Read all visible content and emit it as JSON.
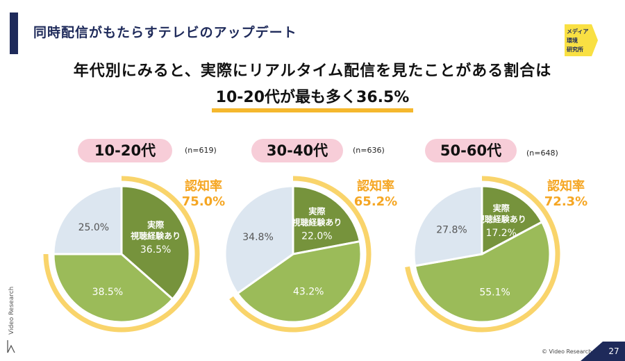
{
  "header": {
    "section_title": "同時配信がもたらすテレビのアップデート",
    "logo_lines": [
      "メディア",
      "環境",
      "研究所"
    ]
  },
  "headline": {
    "line1": "年代別にみると、実際にリアルタイム配信を見たことがある割合は",
    "line2": "10‐20代が最も多く36.5%"
  },
  "colors": {
    "navy": "#1e2a5a",
    "dark_green": "#76933c",
    "light_green": "#9bbb59",
    "pale_blue": "#dce6f0",
    "ring_yellow": "#f9d46b",
    "awareness_orange": "#f5a623",
    "pill_pink": "#f7cdd8"
  },
  "chart_data": [
    {
      "type": "pie",
      "title": "10-20代",
      "n": "(n=619)",
      "awareness_label": "認知率",
      "awareness_value": "75.0%",
      "awareness": 75.0,
      "inner_label": [
        "実際",
        "視聴経験あり"
      ],
      "slices": [
        {
          "label": "実際視聴経験あり",
          "value": 36.5,
          "display": "36.5%"
        },
        {
          "label": "",
          "value": 38.5,
          "display": "38.5%"
        },
        {
          "label": "",
          "value": 25.0,
          "display": "25.0%"
        }
      ]
    },
    {
      "type": "pie",
      "title": "30-40代",
      "n": "(n=636)",
      "awareness_label": "認知率",
      "awareness_value": "65.2%",
      "awareness": 65.2,
      "inner_label": [
        "実際",
        "視聴経験あり"
      ],
      "slices": [
        {
          "label": "実際視聴経験あり",
          "value": 22.0,
          "display": "22.0%"
        },
        {
          "label": "",
          "value": 43.2,
          "display": "43.2%"
        },
        {
          "label": "",
          "value": 34.8,
          "display": "34.8%"
        }
      ]
    },
    {
      "type": "pie",
      "title": "50-60代",
      "n": "(n=648)",
      "awareness_label": "認知率",
      "awareness_value": "72.3%",
      "awareness": 72.3,
      "inner_label": [
        "実際",
        "視聴経験あり"
      ],
      "slices": [
        {
          "label": "実際視聴経験あり",
          "value": 17.2,
          "display": "17.2%"
        },
        {
          "label": "",
          "value": 55.1,
          "display": "55.1%"
        },
        {
          "label": "",
          "value": 27.8,
          "display": "27.8%"
        }
      ]
    }
  ],
  "footer": {
    "brand": "Video Research",
    "copyright": "© Video Research Ltd.",
    "page_number": "27"
  }
}
